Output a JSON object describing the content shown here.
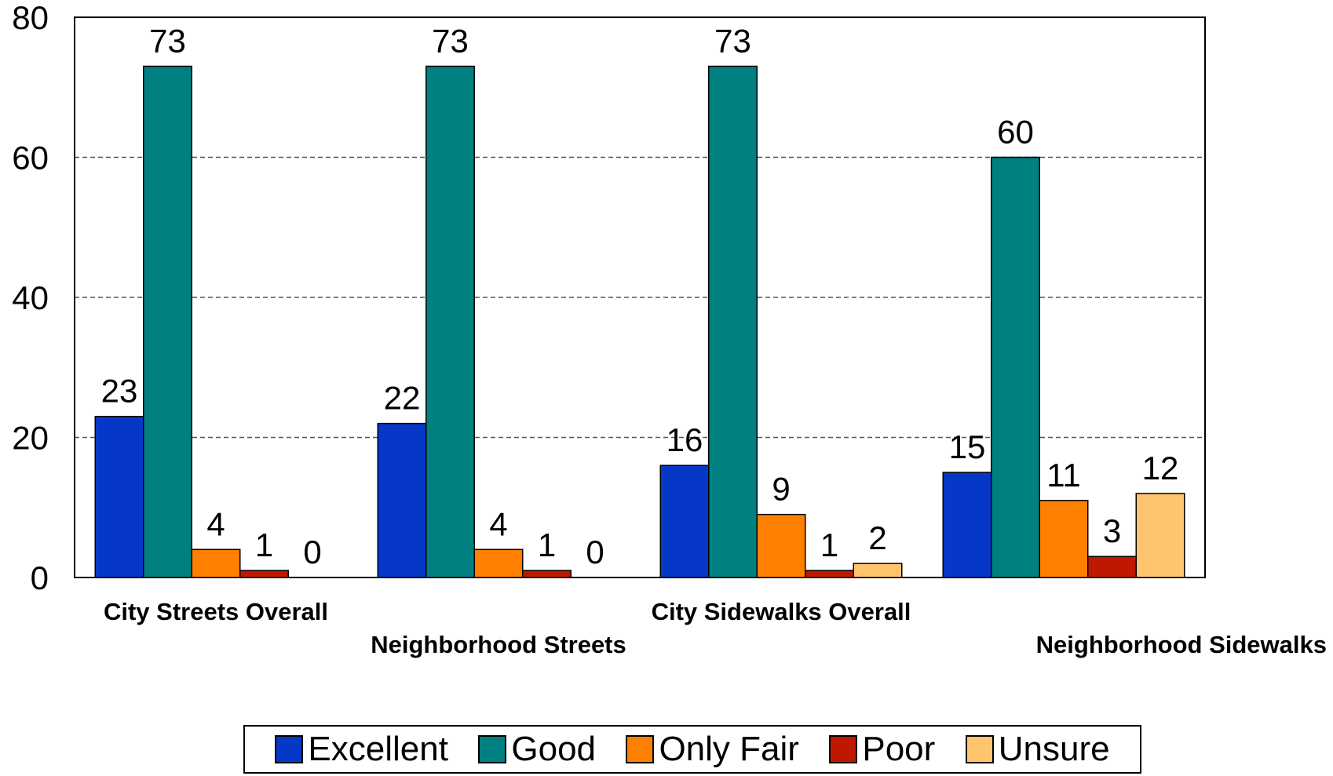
{
  "chart_data": {
    "type": "bar",
    "title": "",
    "xlabel": "",
    "ylabel": "",
    "ylim": [
      0,
      80
    ],
    "yticks": [
      0,
      20,
      40,
      60,
      80
    ],
    "grid": "horizontal dashed",
    "legend_position": "bottom",
    "categories": [
      "City Streets Overall",
      "Neighborhood Streets",
      "City Sidewalks Overall",
      "Neighborhood Sidewalks"
    ],
    "series": [
      {
        "name": "Excellent",
        "color": "#0638C8",
        "values": [
          23,
          22,
          16,
          15
        ]
      },
      {
        "name": "Good",
        "color": "#008080",
        "values": [
          73,
          73,
          73,
          60
        ]
      },
      {
        "name": "Only Fair",
        "color": "#FF8000",
        "values": [
          4,
          4,
          9,
          11
        ]
      },
      {
        "name": "Poor",
        "color": "#C01800",
        "values": [
          1,
          1,
          1,
          3
        ]
      },
      {
        "name": "Unsure",
        "color": "#FFC46E",
        "values": [
          0,
          0,
          2,
          12
        ]
      }
    ]
  }
}
